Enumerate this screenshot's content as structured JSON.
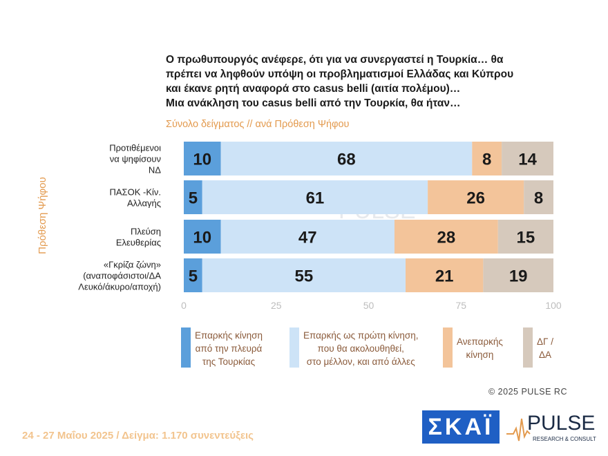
{
  "title_lines": [
    "Ο πρωθυπουργός ανέφερε, ότι για να συνεργαστεί η Τουρκία… θα",
    "πρέπει να ληφθούν υπόψη οι προβληματισμοί Ελλάδας και Κύπρου",
    "και έκανε ρητή αναφορά στο casus belli (αιτία πολέμου)…",
    "Μια ανάκληση του casus belli από την Τουρκία, θα ήταν…"
  ],
  "subtitle": "Σύνολο δείγματος // ανά Πρόθεση Ψήφου",
  "colors": {
    "s1": "#5b9fdb",
    "s2": "#cde3f7",
    "s3": "#f3c49a",
    "s4": "#d6c9bc",
    "accent": "#e39a4e"
  },
  "chart_data": {
    "type": "bar",
    "orientation": "horizontal",
    "stacked": true,
    "ylabel": "Πρόθεση Ψήφου",
    "xlim": [
      0,
      100
    ],
    "xticks": [
      0,
      25,
      50,
      75,
      100
    ],
    "categories": [
      [
        "Προτιθέμενοι",
        "να ψηφίσουν",
        "ΝΔ"
      ],
      [
        "ΠΑΣΟΚ -Κίν.",
        "Αλλαγής"
      ],
      [
        "Πλεύση",
        "Ελευθερίας"
      ],
      [
        "«Γκρίζα ζώνη»",
        "(αναποφάσιστοι/ΔΑ",
        "Λευκό/άκυρο/αποχή)"
      ]
    ],
    "series": [
      {
        "name": "Επαρκής κίνηση από την πλευρά της Τουρκίας",
        "values": [
          10,
          5,
          10,
          5
        ]
      },
      {
        "name": "Επαρκής ως πρώτη κίνηση, που θα ακολουθηθεί, στο μέλλον, και από άλλες",
        "values": [
          68,
          61,
          47,
          55
        ]
      },
      {
        "name": "Ανεπαρκής κίνηση",
        "values": [
          8,
          26,
          28,
          21
        ]
      },
      {
        "name": "ΔΓ / ΔΑ",
        "values": [
          14,
          8,
          15,
          19
        ]
      }
    ],
    "legend_position": "bottom"
  },
  "legend": [
    {
      "lines": [
        "Επαρκής κίνηση",
        "από την πλευρά",
        "της Τουρκίας"
      ]
    },
    {
      "lines": [
        "Επαρκής ως πρώτη κίνηση,",
        "που θα ακολουθηθεί,",
        "στο μέλλον, και από άλλες"
      ]
    },
    {
      "lines": [
        "Ανεπαρκής",
        "κίνηση"
      ]
    },
    {
      "lines": [
        "ΔΓ /",
        "ΔΑ"
      ]
    }
  ],
  "copyright": "©  2025  PULSE RC",
  "footer": "24 - 27 Μαΐου 2025  /  Δείγμα:  1.170 συνεντεύξεις",
  "logos": {
    "skai": "ΣΚΑΪ",
    "pulse": "PULSE",
    "pulse_tagline": "RESEARCH & CONSULTING"
  }
}
